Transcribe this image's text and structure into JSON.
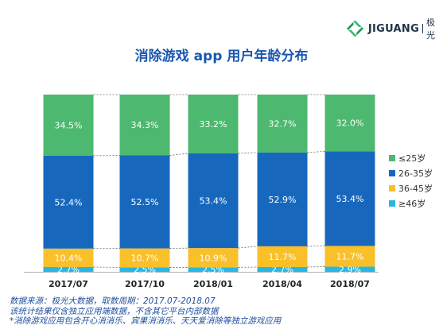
{
  "brand": {
    "name": "JIGUANG",
    "cn_name": "极光"
  },
  "title": "消除游戏 app 用户年龄分布",
  "chart_data": {
    "type": "bar",
    "stacked": true,
    "percent": true,
    "categories": [
      "2017/07",
      "2017/10",
      "2018/01",
      "2018/04",
      "2018/07"
    ],
    "series": [
      {
        "name": "≥46岁",
        "values": [
          2.7,
          2.5,
          2.5,
          2.7,
          2.9
        ],
        "color": "#29b6e3"
      },
      {
        "name": "36-45岁",
        "values": [
          10.4,
          10.7,
          10.9,
          11.7,
          11.7
        ],
        "color": "#f9c02a"
      },
      {
        "name": "26-35岁",
        "values": [
          52.4,
          52.5,
          53.4,
          52.9,
          53.4
        ],
        "color": "#1768bd"
      },
      {
        "name": "≤25岁",
        "values": [
          34.5,
          34.3,
          33.2,
          32.7,
          32.0
        ],
        "color": "#4db86f"
      }
    ],
    "legend_order": [
      "≤25岁",
      "26-35岁",
      "36-45岁",
      "≥46岁"
    ],
    "legend_position": "right"
  },
  "notes": [
    "数据来源：极光大数据，取数周期：2017.07-2018.07",
    "该统计结果仅含独立应用端数据，不含其它平台内部数据",
    "*消除游戏应用包含开心消消乐、宾果消消乐、天天爱消除等独立游戏应用"
  ]
}
